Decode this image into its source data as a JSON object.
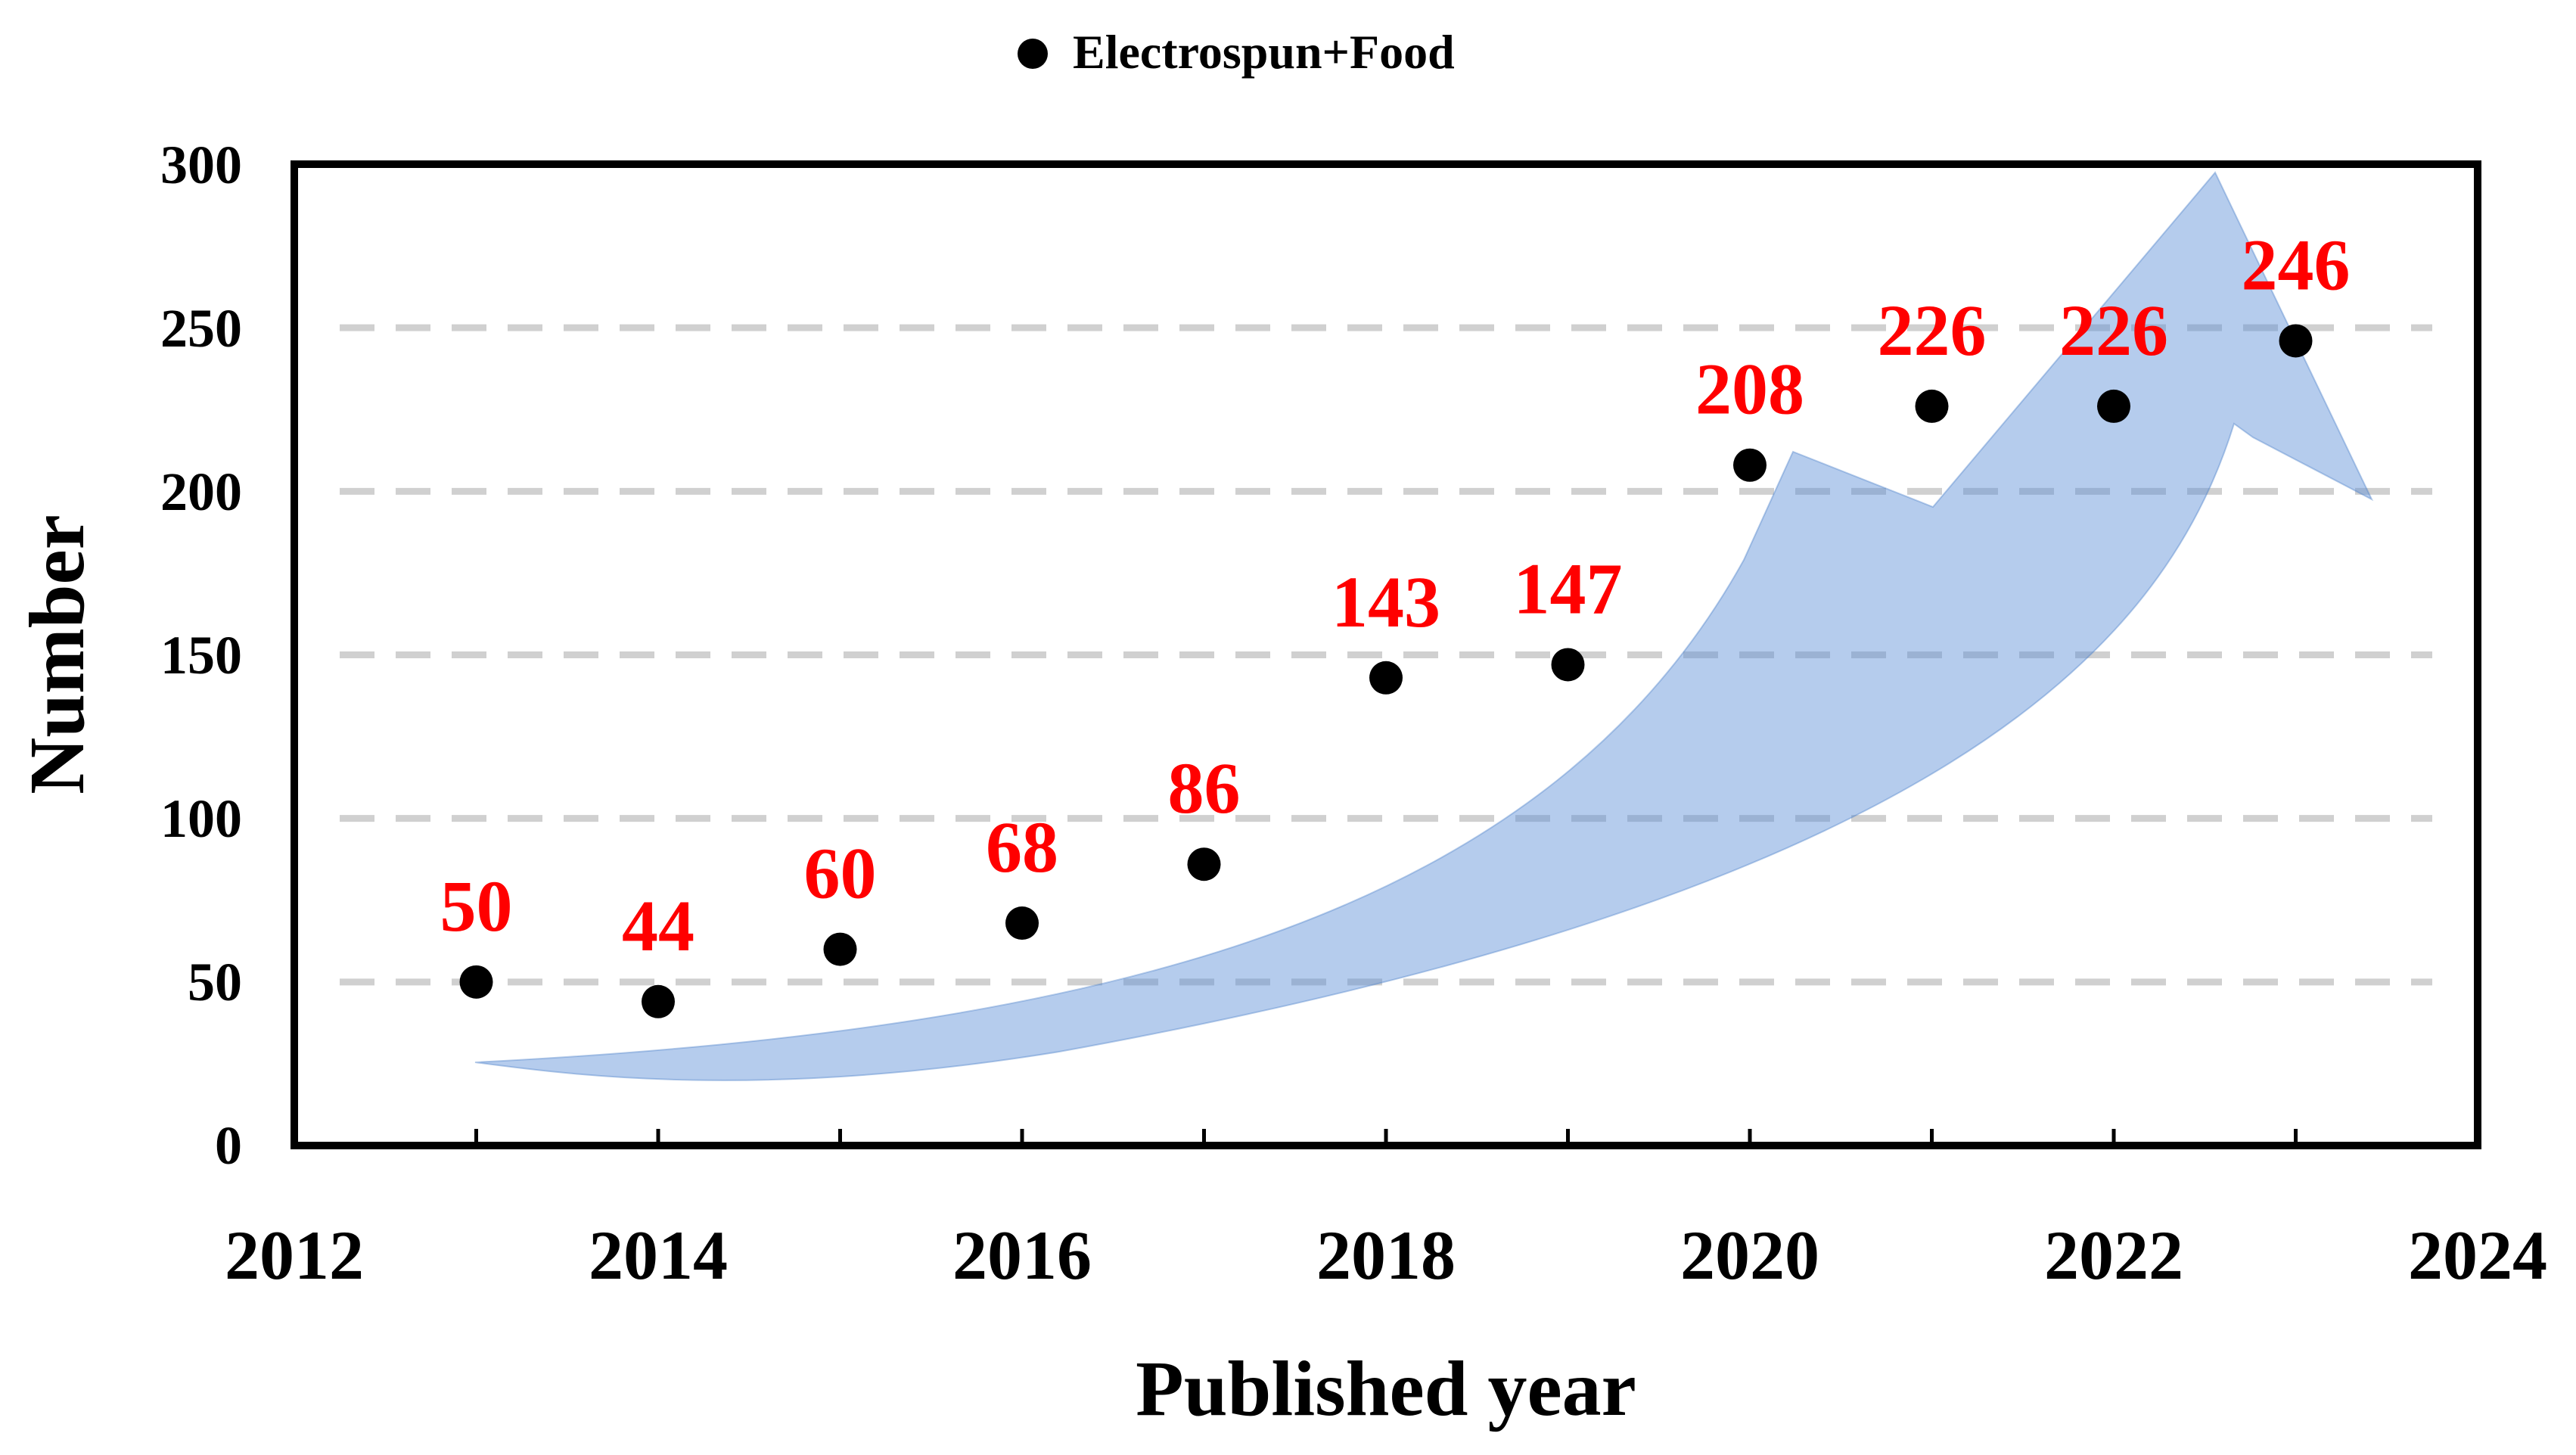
{
  "chart_data": {
    "type": "scatter",
    "legend": {
      "label": "Electrospun+Food",
      "placement": "top-center",
      "marker_color": "#000000"
    },
    "series": [
      {
        "name": "Electrospun+Food",
        "color": "#000000",
        "x": [
          2013,
          2014,
          2015,
          2016,
          2017,
          2018,
          2019,
          2020,
          2021,
          2022,
          2023
        ],
        "values": [
          50,
          44,
          60,
          68,
          86,
          143,
          147,
          208,
          226,
          226,
          246
        ],
        "data_labels": [
          "50",
          "44",
          "60",
          "68",
          "86",
          "143",
          "147",
          "208",
          "226",
          "226",
          "246"
        ]
      }
    ],
    "xlabel": "Published year",
    "ylabel": "Number",
    "xlim": [
      2012,
      2024
    ],
    "ylim": [
      0,
      300
    ],
    "x_ticks": [
      "2012",
      "2014",
      "2016",
      "2018",
      "2020",
      "2022",
      "2024"
    ],
    "y_ticks": [
      "0",
      "50",
      "100",
      "150",
      "200",
      "250",
      "300"
    ],
    "grid": "horizontal-dashed",
    "annotation": "upward trend arrow",
    "colors": {
      "label": "#ff0000",
      "arrow": "#5b8ed6",
      "grid": "#d0d0d0",
      "axis": "#000000"
    }
  }
}
